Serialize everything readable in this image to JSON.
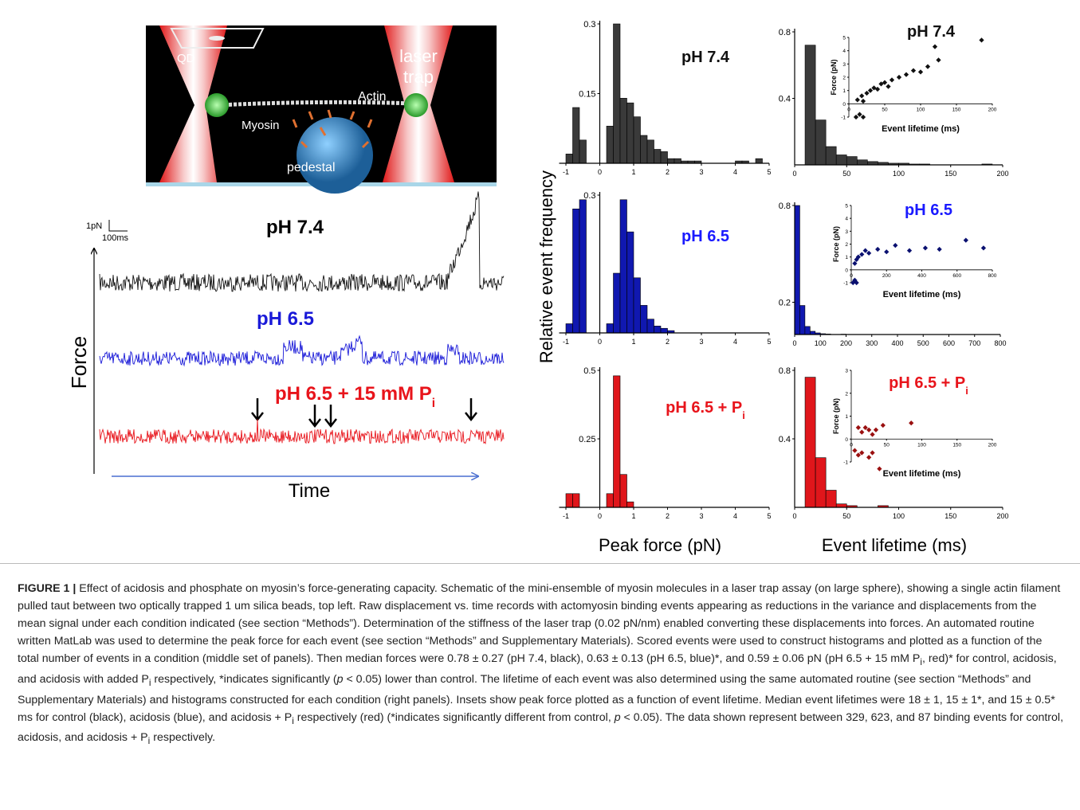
{
  "schematic": {
    "qd": "QD",
    "laser_trap": [
      "laser",
      "trap"
    ],
    "actin": "Actin",
    "myosin": "Myosin",
    "pedestal": "pedestal"
  },
  "traces": {
    "scale_force": "1pN",
    "scale_time": "100ms",
    "labels": [
      "pH 7.4",
      "pH 6.5",
      "pH 6.5 + 15 mM P"
    ],
    "label_sub": "i",
    "y_axis": "Force",
    "x_axis": "Time"
  },
  "axis_labels": {
    "y": "Relative event frequency",
    "x_force": "Peak force (pN)",
    "x_lifetime": "Event lifetime (ms)"
  },
  "chart_data": [
    {
      "type": "histogram",
      "title": "pH 7.4",
      "title_color": "#111111",
      "color": "#3a3a3a",
      "bins": [
        -1.0,
        -0.8,
        -0.6,
        -0.4,
        -0.2,
        0,
        0.2,
        0.4,
        0.6,
        0.8,
        1.0,
        1.2,
        1.4,
        1.6,
        1.8,
        2.0,
        2.2,
        2.4,
        2.6,
        2.8,
        3.0,
        3.2,
        3.4,
        3.6,
        3.8,
        4.0,
        4.2,
        4.4,
        4.6,
        4.8,
        5.0
      ],
      "values": [
        0.02,
        0.12,
        0.05,
        0,
        0,
        0,
        0.08,
        0.3,
        0.14,
        0.13,
        0.1,
        0.06,
        0.05,
        0.03,
        0.025,
        0.01,
        0.01,
        0.005,
        0.005,
        0.005,
        0,
        0,
        0,
        0,
        0,
        0.005,
        0.005,
        0,
        0.01,
        0
      ],
      "xlim": [
        -1.2,
        5
      ],
      "xticks": [
        -1,
        0,
        1,
        2,
        3,
        4,
        5
      ],
      "ylim": [
        0,
        0.3
      ],
      "yticks": [
        0.15,
        0.3
      ]
    },
    {
      "type": "histogram",
      "title": "pH 6.5",
      "title_color": "#1a1aff",
      "color": "#1018b0",
      "bins": [
        -1.0,
        -0.8,
        -0.6,
        -0.4,
        -0.2,
        0,
        0.2,
        0.4,
        0.6,
        0.8,
        1.0,
        1.2,
        1.4,
        1.6,
        1.8,
        2.0,
        2.2,
        2.4,
        2.6,
        2.8,
        3.0,
        3.2,
        3.4,
        3.6,
        3.8,
        4.0,
        4.2,
        4.4,
        4.6,
        4.8,
        5.0
      ],
      "values": [
        0.02,
        0.27,
        0.29,
        0,
        0,
        0,
        0.02,
        0.13,
        0.29,
        0.22,
        0.12,
        0.06,
        0.03,
        0.015,
        0.01,
        0.005,
        0,
        0,
        0,
        0,
        0,
        0,
        0,
        0,
        0,
        0,
        0,
        0,
        0,
        0
      ],
      "xlim": [
        -1.2,
        5
      ],
      "xticks": [
        -1,
        0,
        1,
        2,
        3,
        4,
        5
      ],
      "ylim": [
        0,
        0.3
      ],
      "yticks": [
        0.3
      ]
    },
    {
      "type": "histogram",
      "title": "pH 6.5 + P",
      "title_sub": "i",
      "title_color": "#e8141b",
      "color": "#e0161b",
      "bins": [
        -1.0,
        -0.8,
        -0.6,
        -0.4,
        -0.2,
        0,
        0.2,
        0.4,
        0.6,
        0.8,
        1.0,
        1.2,
        1.4,
        1.6,
        1.8,
        2.0,
        2.2,
        2.4,
        2.6,
        2.8,
        3.0,
        3.2,
        3.4,
        3.6,
        3.8,
        4.0,
        4.2,
        4.4,
        4.6,
        4.8,
        5.0
      ],
      "values": [
        0.05,
        0.05,
        0,
        0,
        0,
        0,
        0.05,
        0.48,
        0.12,
        0.02,
        0,
        0,
        0,
        0,
        0,
        0,
        0,
        0,
        0,
        0,
        0,
        0,
        0,
        0,
        0,
        0,
        0,
        0,
        0,
        0
      ],
      "xlim": [
        -1.2,
        5
      ],
      "xticks": [
        -1,
        0,
        1,
        2,
        3,
        4,
        5
      ],
      "ylim": [
        0,
        0.5
      ],
      "yticks": [
        0.25,
        0.5
      ]
    },
    {
      "type": "histogram",
      "color": "#3a3a3a",
      "bins": [
        0,
        10,
        20,
        30,
        40,
        50,
        60,
        70,
        80,
        90,
        100,
        110,
        120,
        130,
        140,
        150,
        160,
        170,
        180,
        190
      ],
      "values": [
        0,
        0.72,
        0.27,
        0.11,
        0.06,
        0.05,
        0.03,
        0.02,
        0.015,
        0.01,
        0.01,
        0.005,
        0.005,
        0,
        0,
        0,
        0,
        0,
        0.005
      ],
      "xlim": [
        0,
        200
      ],
      "xticks": [
        0,
        50,
        100,
        150,
        200
      ],
      "ylim": [
        0,
        0.8
      ],
      "yticks": [
        0.4,
        0.8
      ]
    },
    {
      "type": "histogram",
      "color": "#1018b0",
      "bins": [
        0,
        20,
        40,
        60,
        80,
        100,
        120,
        140,
        160,
        180,
        200
      ],
      "values": [
        0.8,
        0.18,
        0.05,
        0.02,
        0.01,
        0.005,
        0.003,
        0,
        0,
        0.002
      ],
      "xlim": [
        0,
        800
      ],
      "xticks": [
        0,
        100,
        200,
        300,
        400,
        500,
        600,
        700,
        800
      ],
      "ylim": [
        0,
        0.8
      ],
      "yticks": [
        0.2,
        0.8
      ]
    },
    {
      "type": "histogram",
      "color": "#e0161b",
      "bins": [
        0,
        10,
        20,
        30,
        40,
        50,
        60,
        70,
        80,
        90
      ],
      "values": [
        0,
        0.76,
        0.29,
        0.1,
        0.02,
        0.01,
        0,
        0,
        0.01
      ],
      "xlim": [
        0,
        200
      ],
      "xticks": [
        0,
        50,
        100,
        150,
        200
      ],
      "ylim": [
        0,
        0.8
      ],
      "yticks": [
        0.4,
        0.8
      ]
    },
    {
      "type": "scatter",
      "title": "pH 7.4",
      "title_color": "#111111",
      "color": "#111111",
      "xlabel": "Event lifetime (ms)",
      "ylabel": "Force (pN)",
      "x": [
        10,
        15,
        20,
        12,
        18,
        25,
        30,
        35,
        40,
        45,
        50,
        60,
        70,
        80,
        90,
        100,
        110,
        125,
        120,
        185,
        20,
        55
      ],
      "values": [
        -1,
        -0.8,
        -1,
        0.3,
        0.6,
        0.8,
        1,
        1.2,
        1.1,
        1.5,
        1.6,
        1.8,
        2,
        2.2,
        2.5,
        2.4,
        2.8,
        3.3,
        4.3,
        4.8,
        0.2,
        1.3
      ],
      "xlim": [
        0,
        200
      ],
      "xticks": [
        0,
        50,
        100,
        150,
        200
      ],
      "ylim": [
        -1,
        5
      ],
      "yticks": [
        -1,
        0,
        1,
        2,
        3,
        4,
        5
      ]
    },
    {
      "type": "scatter",
      "title": "pH 6.5",
      "title_color": "#1a1aff",
      "color": "#0a1070",
      "xlabel": "Event lifetime (ms)",
      "ylabel": "Force (pN)",
      "x": [
        10,
        20,
        30,
        20,
        40,
        60,
        80,
        100,
        150,
        200,
        250,
        330,
        420,
        500,
        650,
        750,
        30
      ],
      "values": [
        -1,
        -0.8,
        -1,
        0.5,
        1,
        1.2,
        1.5,
        1.3,
        1.6,
        1.4,
        1.9,
        1.5,
        1.7,
        1.6,
        2.3,
        1.7,
        0.8
      ],
      "xlim": [
        0,
        800
      ],
      "xticks": [
        0,
        200,
        400,
        600,
        800
      ],
      "ylim": [
        -1,
        5
      ],
      "yticks": [
        -1,
        0,
        1,
        2,
        3,
        4,
        5
      ]
    },
    {
      "type": "scatter",
      "title": "pH 6.5 + P",
      "title_sub": "i",
      "title_color": "#e8141b",
      "color": "#9a1010",
      "xlabel": "Event lifetime (ms)",
      "ylabel": "Force (pN)",
      "x": [
        5,
        10,
        15,
        25,
        30,
        40,
        10,
        15,
        20,
        25,
        30,
        35,
        45,
        85
      ],
      "values": [
        -0.5,
        -0.7,
        -0.6,
        -0.8,
        -0.6,
        -1.3,
        0.5,
        0.3,
        0.5,
        0.4,
        0.2,
        0.4,
        0.6,
        0.7
      ],
      "xlim": [
        0,
        200
      ],
      "xticks": [
        0,
        50,
        100,
        150,
        200
      ],
      "ylim": [
        -1,
        3
      ],
      "yticks": [
        -1,
        0,
        1,
        2,
        3
      ]
    }
  ],
  "caption": {
    "label": "FIGURE 1 |",
    "parts": [
      " Effect of acidosis and phosphate on myosin’s force-generating capacity. Schematic of the mini-ensemble of myosin molecules in a laser trap assay (on large sphere), showing a single actin filament pulled taut between two optically trapped 1 um silica beads, top left. Raw displacement vs. time records with actomyosin binding events appearing as reductions in the variance and displacements from the mean signal under each condition indicated (see section “Methods”). Determination of the stiffness of the laser trap (0.02 pN/nm) enabled converting these displacements into forces. An automated routine written MatLab was used to determine the peak force for each event (see section “Methods” and Supplementary Materials). Scored events were used to construct histograms and plotted as a function of the total number of events in a condition (middle set of panels). Then median forces were 0.78 ± 0.27 (pH 7.4, black), 0.63 ± 0.13 (pH 6.5, blue)*, and 0.59 ± 0.06 pN (pH 6.5 + 15 mM P",
      {
        "sub": "i"
      },
      ", red)* for control, acidosis, and acidosis with added P",
      {
        "sub": "i"
      },
      " respectively, *indicates significantly (",
      {
        "em": "p"
      },
      " < 0.05) lower than control. The lifetime of each event was also determined using the same automated routine (see section “Methods” and Supplementary Materials) and histograms constructed for each condition (right panels). Insets show peak force plotted as a function of event lifetime. Median event lifetimes were 18 ± 1, 15 ± 1*, and 15 ± 0.5* ms for control (black), acidosis (blue), and acidosis + P",
      {
        "sub": "i"
      },
      " respectively (red) (*indicates significantly different from control, ",
      {
        "em": "p"
      },
      " < 0.05). The data shown represent between 329, 623, and 87 binding events for control, acidosis, and acidosis + P",
      {
        "sub": "i"
      },
      " respectively."
    ]
  }
}
